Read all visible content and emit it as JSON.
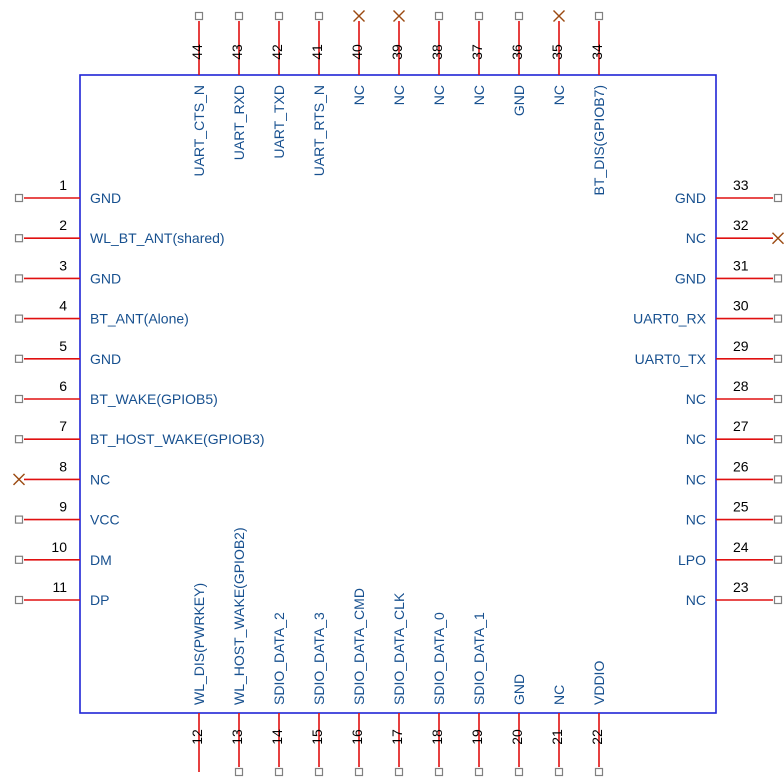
{
  "component": {
    "left": [
      {
        "num": "1",
        "name": "GND",
        "nc": false
      },
      {
        "num": "2",
        "name": "WL_BT_ANT(shared)",
        "nc": false
      },
      {
        "num": "3",
        "name": "GND",
        "nc": false
      },
      {
        "num": "4",
        "name": "BT_ANT(Alone)",
        "nc": false
      },
      {
        "num": "5",
        "name": "GND",
        "nc": false
      },
      {
        "num": "6",
        "name": "BT_WAKE(GPIOB5)",
        "nc": false
      },
      {
        "num": "7",
        "name": "BT_HOST_WAKE(GPIOB3)",
        "nc": false
      },
      {
        "num": "8",
        "name": "NC",
        "nc": true
      },
      {
        "num": "9",
        "name": "VCC",
        "nc": false
      },
      {
        "num": "10",
        "name": "DM",
        "nc": false
      },
      {
        "num": "11",
        "name": "DP",
        "nc": false
      }
    ],
    "bottom": [
      {
        "num": "12",
        "name": "WL_DIS(PWRKEY)",
        "nc": false,
        "open": true
      },
      {
        "num": "13",
        "name": "WL_HOST_WAKE(GPIOB2)",
        "nc": false
      },
      {
        "num": "14",
        "name": "SDIO_DATA_2",
        "nc": false
      },
      {
        "num": "15",
        "name": "SDIO_DATA_3",
        "nc": false
      },
      {
        "num": "16",
        "name": "SDIO_DATA_CMD",
        "nc": false
      },
      {
        "num": "17",
        "name": "SDIO_DATA_CLK",
        "nc": false
      },
      {
        "num": "18",
        "name": "SDIO_DATA_0",
        "nc": false
      },
      {
        "num": "19",
        "name": "SDIO_DATA_1",
        "nc": false
      },
      {
        "num": "20",
        "name": "GND",
        "nc": false
      },
      {
        "num": "21",
        "name": "NC",
        "nc": false
      },
      {
        "num": "22",
        "name": "VDDIO",
        "nc": false
      }
    ],
    "right": [
      {
        "num": "23",
        "name": "NC",
        "nc": false
      },
      {
        "num": "24",
        "name": "LPO",
        "nc": false
      },
      {
        "num": "25",
        "name": "NC",
        "nc": false
      },
      {
        "num": "26",
        "name": "NC",
        "nc": false
      },
      {
        "num": "27",
        "name": "NC",
        "nc": false
      },
      {
        "num": "28",
        "name": "NC",
        "nc": false
      },
      {
        "num": "29",
        "name": "UART0_TX",
        "nc": false
      },
      {
        "num": "30",
        "name": "UART0_RX",
        "nc": false
      },
      {
        "num": "31",
        "name": "GND",
        "nc": false
      },
      {
        "num": "32",
        "name": "NC",
        "nc": true
      },
      {
        "num": "33",
        "name": "GND",
        "nc": false
      }
    ],
    "top": [
      {
        "num": "34",
        "name": "BT_DIS(GPIOB7)",
        "nc": false
      },
      {
        "num": "35",
        "name": "NC",
        "nc": true
      },
      {
        "num": "36",
        "name": "GND",
        "nc": false
      },
      {
        "num": "37",
        "name": "NC",
        "nc": false
      },
      {
        "num": "38",
        "name": "NC",
        "nc": false
      },
      {
        "num": "39",
        "name": "NC",
        "nc": true
      },
      {
        "num": "40",
        "name": "NC",
        "nc": true
      },
      {
        "num": "41",
        "name": "UART_RTS_N",
        "nc": false
      },
      {
        "num": "42",
        "name": "UART_TXD",
        "nc": false
      },
      {
        "num": "43",
        "name": "UART_RXD",
        "nc": false
      },
      {
        "num": "44",
        "name": "UART_CTS_N",
        "nc": false
      }
    ]
  },
  "colors": {
    "body_outline": "#1f24d6",
    "pin_lead": "#e01010",
    "pin_name": "#17508f",
    "pin_number": "#000000",
    "no_connect_mark": "#9b4a12",
    "terminal_box": "#808080"
  }
}
